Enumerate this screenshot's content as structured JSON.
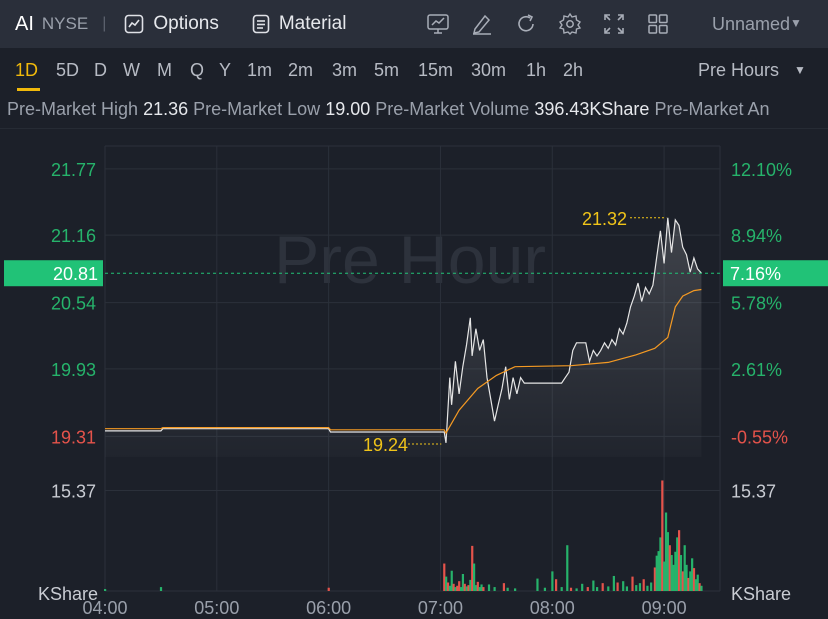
{
  "header": {
    "symbol": "AI",
    "exchange": "NYSE",
    "separator": "|",
    "options_label": "Options",
    "material_label": "Material",
    "tools": [
      "chart-type-icon",
      "draw-icon",
      "refresh-icon",
      "settings-icon",
      "fullscreen-icon",
      "layout-grid-icon"
    ],
    "layout_name": "Unnamed"
  },
  "timeframes": [
    "1D",
    "5D",
    "D",
    "W",
    "M",
    "Q",
    "Y",
    "1m",
    "2m",
    "3m",
    "5m",
    "15m",
    "30m",
    "1h",
    "2h"
  ],
  "active_timeframe": "1D",
  "session_label": "Pre Hours",
  "stats": [
    {
      "label": "Pre-Market High",
      "value": "21.36"
    },
    {
      "label": "Pre-Market Low",
      "value": "19.00"
    },
    {
      "label": "Pre-Market Volume",
      "value": "396.43KShare"
    },
    {
      "label": "Pre-Market An",
      "value": ""
    }
  ],
  "colors": {
    "up": "#26b36b",
    "down": "#e5534b",
    "price_line": "#e6e6e6",
    "avg_line": "#f59a23",
    "highlight": "#f0c419",
    "current_price_bg": "#21c277"
  },
  "chart_data": {
    "type": "line",
    "watermark": "Pre Hour",
    "x_ticks": [
      "04:00",
      "05:00",
      "06:00",
      "07:00",
      "08:00",
      "09:00"
    ],
    "x_range_minutes": [
      0,
      330
    ],
    "y_range": [
      19.12,
      21.98
    ],
    "reference_price": 19.417,
    "left_ticks": [
      {
        "label": "21.77",
        "value": 21.77,
        "color": "up"
      },
      {
        "label": "21.16",
        "value": 21.16,
        "color": "up"
      },
      {
        "label": "20.54",
        "value": 20.54,
        "color": "up"
      },
      {
        "label": "19.93",
        "value": 19.93,
        "color": "up"
      },
      {
        "label": "19.31",
        "value": 19.31,
        "color": "down"
      }
    ],
    "right_ticks": [
      {
        "label": "12.10%",
        "value": 21.77,
        "color": "up"
      },
      {
        "label": "8.94%",
        "value": 21.16,
        "color": "up"
      },
      {
        "label": "5.78%",
        "value": 20.54,
        "color": "up"
      },
      {
        "label": "2.61%",
        "value": 19.93,
        "color": "up"
      },
      {
        "label": "-0.55%",
        "value": 19.31,
        "color": "down"
      }
    ],
    "current_price": {
      "label": "20.81",
      "percent": "7.16%",
      "value": 20.81
    },
    "high_marker": {
      "label": "21.32",
      "time": 299,
      "value": 21.32
    },
    "low_marker": {
      "label": "19.24",
      "time": 181,
      "value": 19.24
    },
    "volume_axis": {
      "tick": "15.37",
      "unit": "KShare"
    },
    "series": [
      {
        "name": "Price",
        "color": "price_line",
        "points": [
          [
            0,
            19.36
          ],
          [
            30,
            19.36
          ],
          [
            31,
            19.38
          ],
          [
            120,
            19.38
          ],
          [
            121,
            19.35
          ],
          [
            182,
            19.35
          ],
          [
            183,
            19.25
          ],
          [
            184,
            19.55
          ],
          [
            185,
            19.85
          ],
          [
            186,
            19.6
          ],
          [
            188,
            20.0
          ],
          [
            190,
            19.7
          ],
          [
            192,
            19.95
          ],
          [
            194,
            20.15
          ],
          [
            196,
            20.4
          ],
          [
            197,
            20.05
          ],
          [
            199,
            20.3
          ],
          [
            201,
            20.1
          ],
          [
            203,
            20.2
          ],
          [
            205,
            19.85
          ],
          [
            207,
            19.65
          ],
          [
            209,
            19.45
          ],
          [
            211,
            19.6
          ],
          [
            213,
            19.75
          ],
          [
            215,
            19.95
          ],
          [
            217,
            19.65
          ],
          [
            219,
            19.85
          ],
          [
            221,
            19.7
          ],
          [
            223,
            19.85
          ],
          [
            225,
            19.8
          ],
          [
            245,
            19.8
          ],
          [
            247,
            19.85
          ],
          [
            249,
            19.9
          ],
          [
            251,
            20.1
          ],
          [
            253,
            20.17
          ],
          [
            258,
            20.17
          ],
          [
            260,
            20.0
          ],
          [
            262,
            20.1
          ],
          [
            264,
            20.05
          ],
          [
            266,
            20.1
          ],
          [
            268,
            20.17
          ],
          [
            270,
            20.12
          ],
          [
            272,
            20.2
          ],
          [
            274,
            20.15
          ],
          [
            276,
            20.3
          ],
          [
            278,
            20.25
          ],
          [
            280,
            20.35
          ],
          [
            282,
            20.5
          ],
          [
            284,
            20.6
          ],
          [
            286,
            20.72
          ],
          [
            288,
            20.55
          ],
          [
            290,
            20.68
          ],
          [
            292,
            20.62
          ],
          [
            294,
            20.7
          ],
          [
            296,
            20.95
          ],
          [
            298,
            21.2
          ],
          [
            300,
            20.9
          ],
          [
            302,
            21.32
          ],
          [
            304,
            21.0
          ],
          [
            306,
            21.3
          ],
          [
            308,
            21.25
          ],
          [
            310,
            21.05
          ],
          [
            312,
            20.98
          ],
          [
            314,
            20.82
          ],
          [
            316,
            20.95
          ],
          [
            318,
            20.85
          ],
          [
            320,
            20.81
          ]
        ]
      },
      {
        "name": "Average",
        "color": "avg_line",
        "points": [
          [
            0,
            19.38
          ],
          [
            30,
            19.38
          ],
          [
            31,
            19.39
          ],
          [
            120,
            19.39
          ],
          [
            121,
            19.37
          ],
          [
            182,
            19.37
          ],
          [
            183,
            19.34
          ],
          [
            190,
            19.55
          ],
          [
            200,
            19.75
          ],
          [
            210,
            19.87
          ],
          [
            220,
            19.95
          ],
          [
            250,
            19.96
          ],
          [
            270,
            19.99
          ],
          [
            285,
            20.06
          ],
          [
            295,
            20.12
          ],
          [
            302,
            20.22
          ],
          [
            306,
            20.5
          ],
          [
            310,
            20.6
          ],
          [
            316,
            20.65
          ],
          [
            320,
            20.66
          ]
        ]
      }
    ],
    "volume": [
      [
        0,
        0.3,
        "up"
      ],
      [
        30,
        0.6,
        "up"
      ],
      [
        120,
        0.5,
        "down"
      ],
      [
        182,
        4.2,
        "down"
      ],
      [
        183,
        2.2,
        "up"
      ],
      [
        184,
        1.3,
        "down"
      ],
      [
        185,
        0.8,
        "up"
      ],
      [
        186,
        3.1,
        "up"
      ],
      [
        187,
        1.1,
        "down"
      ],
      [
        188,
        0.6,
        "up"
      ],
      [
        189,
        0.8,
        "down"
      ],
      [
        190,
        1.5,
        "down"
      ],
      [
        191,
        0.6,
        "up"
      ],
      [
        192,
        2.6,
        "up"
      ],
      [
        193,
        1.1,
        "down"
      ],
      [
        194,
        0.7,
        "up"
      ],
      [
        195,
        0.9,
        "down"
      ],
      [
        196,
        1.7,
        "up"
      ],
      [
        197,
        6.9,
        "down"
      ],
      [
        198,
        4.2,
        "up"
      ],
      [
        199,
        0.9,
        "up"
      ],
      [
        200,
        1.4,
        "down"
      ],
      [
        201,
        0.6,
        "up"
      ],
      [
        202,
        1.0,
        "up"
      ],
      [
        203,
        0.6,
        "down"
      ],
      [
        206,
        1.0,
        "up"
      ],
      [
        209,
        0.6,
        "up"
      ],
      [
        214,
        1.2,
        "down"
      ],
      [
        216,
        0.5,
        "up"
      ],
      [
        220,
        0.4,
        "up"
      ],
      [
        232,
        1.9,
        "up"
      ],
      [
        236,
        0.5,
        "up"
      ],
      [
        240,
        3.0,
        "up"
      ],
      [
        242,
        1.8,
        "down"
      ],
      [
        245,
        0.6,
        "up"
      ],
      [
        248,
        7.0,
        "up"
      ],
      [
        250,
        0.5,
        "down"
      ],
      [
        253,
        0.4,
        "up"
      ],
      [
        256,
        1.1,
        "up"
      ],
      [
        259,
        0.6,
        "down"
      ],
      [
        262,
        1.6,
        "up"
      ],
      [
        264,
        0.6,
        "up"
      ],
      [
        267,
        1.2,
        "down"
      ],
      [
        270,
        0.7,
        "up"
      ],
      [
        273,
        2.3,
        "up"
      ],
      [
        275,
        1.3,
        "down"
      ],
      [
        278,
        1.5,
        "up"
      ],
      [
        280,
        0.7,
        "up"
      ],
      [
        283,
        2.2,
        "down"
      ],
      [
        285,
        0.9,
        "up"
      ],
      [
        287,
        1.2,
        "up"
      ],
      [
        289,
        1.8,
        "down"
      ],
      [
        291,
        0.8,
        "up"
      ],
      [
        293,
        1.3,
        "up"
      ],
      [
        295,
        3.6,
        "down"
      ],
      [
        296,
        5.4,
        "up"
      ],
      [
        297,
        6.1,
        "up"
      ],
      [
        298,
        8.2,
        "up"
      ],
      [
        299,
        16.9,
        "down"
      ],
      [
        300,
        4.5,
        "up"
      ],
      [
        301,
        12.0,
        "up"
      ],
      [
        302,
        9.0,
        "up"
      ],
      [
        303,
        7.0,
        "down"
      ],
      [
        304,
        5.5,
        "up"
      ],
      [
        305,
        4.0,
        "up"
      ],
      [
        306,
        6.0,
        "up"
      ],
      [
        307,
        8.2,
        "up"
      ],
      [
        308,
        9.3,
        "down"
      ],
      [
        309,
        5.5,
        "up"
      ],
      [
        310,
        3.0,
        "down"
      ],
      [
        311,
        7.0,
        "up"
      ],
      [
        312,
        4.0,
        "up"
      ],
      [
        313,
        2.0,
        "down"
      ],
      [
        314,
        3.0,
        "up"
      ],
      [
        315,
        5.0,
        "up"
      ],
      [
        316,
        3.5,
        "down"
      ],
      [
        317,
        1.8,
        "up"
      ],
      [
        318,
        2.5,
        "up"
      ],
      [
        319,
        1.2,
        "down"
      ],
      [
        320,
        0.8,
        "up"
      ]
    ]
  }
}
